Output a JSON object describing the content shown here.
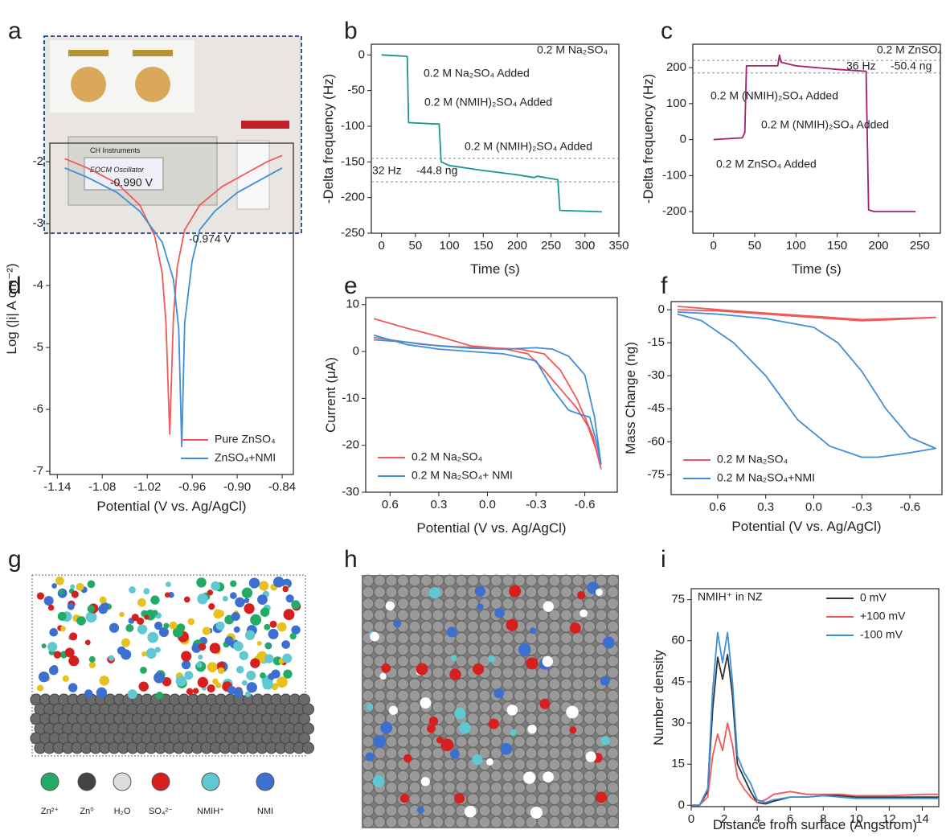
{
  "panel_labels": [
    "a",
    "b",
    "c",
    "d",
    "e",
    "f",
    "g",
    "h",
    "i"
  ],
  "photo_text": [
    "CH Instruments",
    "EQCM Oscillator"
  ],
  "species_labels": [
    "Zn²⁺",
    "Zn⁰",
    "H₂O",
    "SO₄²⁻",
    "NMIH⁺",
    "NMI"
  ],
  "chart_data": [
    {
      "type": "line",
      "x_label": "Time (s)",
      "y_label": "-Delta frequency (Hz)",
      "xlim": [
        -15,
        350
      ],
      "ylim": [
        -250,
        15
      ],
      "xticks": [
        0,
        50,
        100,
        150,
        200,
        250,
        300,
        350
      ],
      "yticks": [
        -250,
        -200,
        -150,
        -100,
        -50,
        0
      ],
      "x": [
        0,
        20,
        38,
        40,
        85,
        88,
        100,
        150,
        200,
        225,
        230,
        260,
        263,
        325
      ],
      "series": [
        {
          "color": "#1a9590",
          "values": [
            0,
            -1,
            -2,
            -95,
            -97,
            -150,
            -155,
            -162,
            -168,
            -172,
            -170,
            -175,
            -218,
            -220
          ]
        }
      ],
      "hlines": [
        -145,
        -178
      ],
      "annotations": [
        "0.2 M Na₂SO₄",
        "0.2 M Na₂SO₄  Added",
        "0.2 M (NMIH)₂SO₄  Added",
        "0.2 M (NMIH)₂SO₄  Added",
        "32 Hz",
        "-44.8 ng"
      ]
    },
    {
      "type": "line",
      "x_label": "Time (s)",
      "y_label": "-Delta frequency (Hz)",
      "xlim": [
        -25,
        275
      ],
      "ylim": [
        -260,
        265
      ],
      "xticks": [
        0,
        50,
        100,
        150,
        200,
        250
      ],
      "yticks": [
        -200,
        -100,
        0,
        100,
        200
      ],
      "x": [
        0,
        35,
        38,
        40,
        78,
        80,
        82,
        100,
        150,
        185,
        188,
        195,
        245
      ],
      "series": [
        {
          "color": "#a3206e",
          "values": [
            0,
            5,
            20,
            205,
            205,
            235,
            215,
            205,
            195,
            190,
            -195,
            -200,
            -200
          ]
        }
      ],
      "hlines": [
        220,
        185
      ],
      "annotations": [
        "0.2 M ZnSO₄",
        "36 Hz",
        "-50.4 ng",
        "0.2 M (NMIH)₂SO₄  Added",
        "0.2 M (NMIH)₂SO₄  Added",
        "0.2 M ZnSO₄  Added"
      ]
    },
    {
      "type": "line",
      "x_label": "Potential (V vs. Ag/AgCl)",
      "y_label": "Log (|i| A cm⁻²)",
      "xlim": [
        -1.15,
        -0.825
      ],
      "ylim": [
        -7.05,
        -1.7
      ],
      "xticks": [
        -1.14,
        -1.08,
        -1.02,
        -0.96,
        {
          "value": -0.9,
          "label": "-0.90"
        },
        -0.84
      ],
      "yticks": [
        -7,
        -6,
        -5,
        -4,
        -3,
        -2
      ],
      "legend": "lower right",
      "series": [
        {
          "name": "Pure ZnSO₄",
          "color": "#f0585a",
          "x": [
            -1.13,
            -1.1,
            -1.06,
            -1.03,
            -1.01,
            -1.0,
            -0.995,
            -0.99,
            -0.985,
            -0.98,
            -0.97,
            -0.95,
            -0.92,
            -0.89,
            -0.86,
            -0.84
          ],
          "values": [
            -1.95,
            -2.1,
            -2.35,
            -2.7,
            -3.2,
            -3.8,
            -4.6,
            -6.4,
            -4.5,
            -3.7,
            -3.1,
            -2.7,
            -2.4,
            -2.2,
            -2.0,
            -1.9
          ]
        },
        {
          "name": "ZnSO₄+NMI",
          "color": "#3d8fd8",
          "x": [
            -1.13,
            -1.1,
            -1.06,
            -1.03,
            -1.0,
            -0.985,
            -0.978,
            -0.974,
            -0.97,
            -0.96,
            -0.95,
            -0.93,
            -0.9,
            -0.87,
            -0.84
          ],
          "values": [
            -2.1,
            -2.25,
            -2.5,
            -2.8,
            -3.3,
            -3.9,
            -4.7,
            -6.6,
            -4.6,
            -3.6,
            -3.1,
            -2.8,
            -2.5,
            -2.3,
            -2.1
          ]
        }
      ],
      "annotations": [
        "-0.990 V",
        "-0.974 V"
      ]
    },
    {
      "type": "line",
      "x_label": "Potential (V vs. Ag/AgCl)",
      "y_label": "Current (μA)",
      "xlim": [
        0.75,
        -0.8
      ],
      "ylim": [
        -30,
        11.5
      ],
      "xticks": [
        0.6,
        0.3,
        {
          "value": 0,
          "label": "0.0"
        },
        -0.3,
        -0.6
      ],
      "yticks": [
        -30,
        -20,
        -10,
        0,
        10
      ],
      "legend": "lower left",
      "series": [
        {
          "name": "0.2 M Na₂SO₄",
          "color": "#f0585a",
          "x": [
            0.7,
            0.5,
            0.3,
            0.1,
            -0.1,
            -0.25,
            -0.35,
            -0.45,
            -0.55,
            -0.62,
            -0.67,
            -0.7,
            -0.65,
            -0.55,
            -0.45,
            -0.35,
            -0.2,
            0.0,
            0.2,
            0.4,
            0.6,
            0.7
          ],
          "values": [
            7,
            5,
            3.2,
            1.2,
            0.6,
            -0.5,
            -4,
            -8,
            -12,
            -16,
            -21,
            -25,
            -18,
            -10,
            -4,
            -0.5,
            0.5,
            0.8,
            1.0,
            1.5,
            2.5,
            3
          ]
        },
        {
          "name": "0.2 M Na₂SO₄+ NMI",
          "color": "#3d8fd8",
          "x": [
            0.7,
            0.5,
            0.3,
            0.1,
            -0.1,
            -0.3,
            -0.4,
            -0.5,
            -0.58,
            -0.63,
            -0.67,
            -0.7,
            -0.66,
            -0.6,
            -0.5,
            -0.4,
            -0.3,
            -0.1,
            0.1,
            0.3,
            0.5,
            0.7
          ],
          "values": [
            3.5,
            1.5,
            0.5,
            0,
            -0.5,
            -2,
            -8,
            -12.5,
            -13.5,
            -14,
            -19,
            -24,
            -14,
            -5,
            -1,
            0.5,
            0.8,
            0.5,
            0.7,
            1.2,
            2,
            2.5
          ]
        }
      ]
    },
    {
      "type": "line",
      "x_label": "Potential (V vs. Ag/AgCl)",
      "y_label": "Mass Change (ng)",
      "xlim": [
        0.89,
        -0.8
      ],
      "ylim": [
        -84,
        3.7
      ],
      "xticks": [
        0.6,
        0.3,
        {
          "value": 0,
          "label": "0.0"
        },
        -0.3,
        -0.6
      ],
      "yticks": [
        -75,
        -60,
        -45,
        -30,
        -15,
        0
      ],
      "legend": "lower left",
      "series": [
        {
          "name": "0.2 M Na₂SO₄",
          "color": "#f0585a",
          "x": [
            0.85,
            0.6,
            0.3,
            0,
            -0.3,
            -0.5,
            -0.76,
            -0.5,
            -0.3,
            -0.1,
            0.2,
            0.5,
            0.85
          ],
          "values": [
            0,
            -0.5,
            -2,
            -3.5,
            -5,
            -4.5,
            -3.5,
            -4,
            -4.5,
            -3.5,
            -2,
            -0.5,
            1.5
          ]
        },
        {
          "name": "0.2 M Na₂SO₄+NMI",
          "color": "#3d8fd8",
          "x": [
            0.85,
            0.6,
            0.3,
            0,
            -0.15,
            -0.3,
            -0.45,
            -0.6,
            -0.76,
            -0.6,
            -0.4,
            -0.3,
            -0.1,
            0.1,
            0.3,
            0.5,
            0.7,
            0.85
          ],
          "values": [
            -1,
            -2,
            -4,
            -8,
            -15,
            -28,
            -45,
            -58,
            -63,
            -65,
            -67,
            -67,
            -62,
            -50,
            -30,
            -15,
            -5,
            -2
          ]
        }
      ]
    },
    {
      "type": "line",
      "x_label": "Distance from surface (Angstrom)",
      "y_label": "Number density",
      "xlim": [
        0,
        15
      ],
      "ylim": [
        -0.5,
        79
      ],
      "xticks": [
        0,
        2,
        4,
        6,
        8,
        10,
        12,
        14
      ],
      "yticks": [
        0,
        15,
        30,
        45,
        60,
        75
      ],
      "legend": "upper right",
      "x": [
        0,
        0.5,
        1,
        1.3,
        1.6,
        1.9,
        2.2,
        2.5,
        2.8,
        3.2,
        3.6,
        4,
        4.5,
        5,
        6,
        7,
        8,
        9,
        10,
        12,
        14,
        15
      ],
      "series": [
        {
          "name": "0 mV",
          "color": "#333333",
          "values": [
            0,
            0,
            5,
            35,
            54,
            46,
            55,
            40,
            15,
            10,
            5,
            1,
            0.5,
            1.5,
            3,
            3,
            3.5,
            3.5,
            3,
            3,
            3,
            3
          ]
        },
        {
          "name": "+100 mV",
          "color": "#f0585a",
          "values": [
            0,
            0,
            3,
            18,
            26,
            20,
            30,
            22,
            10,
            6,
            3,
            1,
            2,
            4,
            5,
            4,
            4,
            4,
            3.5,
            3.5,
            4,
            4
          ]
        },
        {
          "name": "-100 mV",
          "color": "#3d8fd8",
          "values": [
            0,
            0,
            6,
            42,
            63,
            52,
            63,
            45,
            18,
            12,
            8,
            2,
            1,
            2,
            3,
            3,
            3.5,
            3,
            2.5,
            2.5,
            2.5,
            2.5
          ]
        }
      ],
      "annotations": [
        "NMIH⁺ in NZ"
      ]
    }
  ]
}
